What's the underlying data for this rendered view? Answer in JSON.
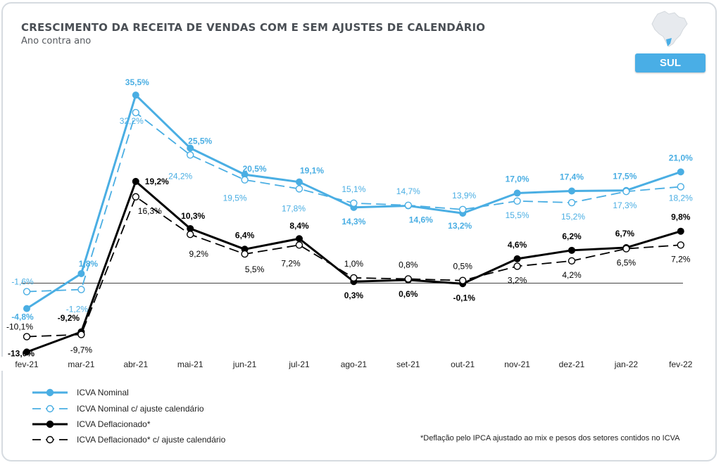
{
  "header": {
    "title": "CRESCIMENTO DA RECEITA DE VENDAS COM E SEM AJUSTES DE CALENDÁRIO",
    "subtitle": "Ano contra ano",
    "region_badge": "SUL",
    "map_icon": "brazil-map-icon"
  },
  "footnote": "*Deflação pelo IPCA ajustado ao mix e pesos dos setores contidos no ICVA",
  "colors": {
    "nominal": "#4aaee3",
    "deflacionado": "#000000",
    "axis": "#444444",
    "badge": "#49aee6"
  },
  "chart_data": {
    "type": "line",
    "categories": [
      "fev-21",
      "mar-21",
      "abr-21",
      "mai-21",
      "jun-21",
      "jul-21",
      "ago-21",
      "set-21",
      "out-21",
      "nov-21",
      "dez-21",
      "jan-22",
      "fev-22"
    ],
    "series": [
      {
        "name": "ICVA Nominal",
        "values": [
          -4.8,
          1.8,
          35.5,
          25.5,
          20.5,
          19.1,
          14.3,
          14.6,
          13.2,
          17.0,
          17.4,
          17.5,
          21.0
        ],
        "labels": [
          "-4,8%",
          "1,8%",
          "35,5%",
          "25,5%",
          "20,5%",
          "19,1%",
          "14,3%",
          "14,6%",
          "13,2%",
          "17,0%",
          "17,4%",
          "17,5%",
          "21,0%"
        ]
      },
      {
        "name": "ICVA Nominal c/ ajuste calendário",
        "values": [
          -1.6,
          -1.2,
          32.2,
          24.2,
          19.5,
          17.8,
          15.1,
          14.7,
          13.9,
          15.5,
          15.2,
          17.3,
          18.2
        ],
        "labels": [
          "-1,6%",
          "-1,2%",
          "32,2%",
          "24,2%",
          "19,5%",
          "17,8%",
          "15,1%",
          "14,7%",
          "13,9%",
          "15,5%",
          "15,2%",
          "17,3%",
          "18,2%"
        ]
      },
      {
        "name": "ICVA Deflacionado*",
        "values": [
          -13.0,
          -9.2,
          19.2,
          10.3,
          6.4,
          8.4,
          0.3,
          0.6,
          -0.1,
          4.6,
          6.2,
          6.7,
          9.8
        ],
        "labels": [
          "-13,0%",
          "-9,2%",
          "19,2%",
          "10,3%",
          "6,4%",
          "8,4%",
          "0,3%",
          "0,6%",
          "-0,1%",
          "4,6%",
          "6,2%",
          "6,7%",
          "9,8%"
        ]
      },
      {
        "name": "ICVA Deflacionado* c/ ajuste calendário",
        "values": [
          -10.1,
          -9.7,
          16.3,
          9.2,
          5.5,
          7.2,
          1.0,
          0.8,
          0.5,
          3.2,
          4.2,
          6.5,
          7.2
        ],
        "labels": [
          "-10,1%",
          "-9,7%",
          "16,3%",
          "9,2%",
          "5,5%",
          "7,2%",
          "1,0%",
          "0,8%",
          "0,5%",
          "3,2%",
          "4,2%",
          "6,5%",
          "7,2%"
        ]
      }
    ],
    "ylim": [
      -14,
      37
    ],
    "grid": false,
    "legend": "bottom-left"
  }
}
